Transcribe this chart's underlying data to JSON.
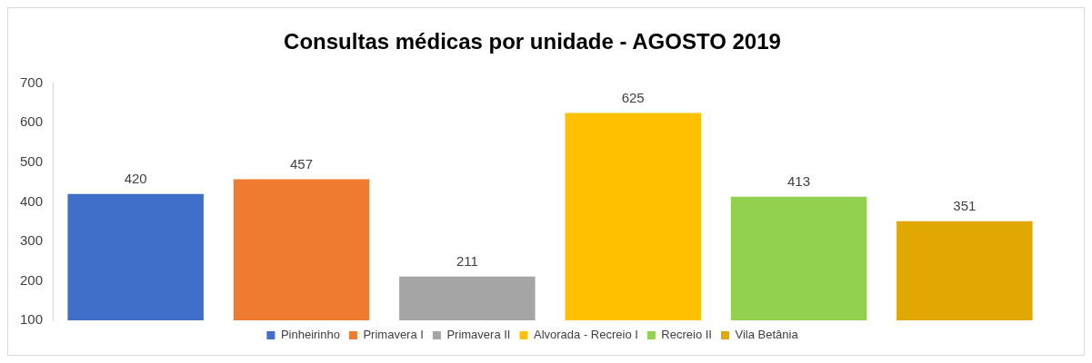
{
  "chart_data": {
    "type": "bar",
    "title": "Consultas médicas por unidade - AGOSTO 2019",
    "categories": [
      null
    ],
    "series": [
      {
        "name": "Pinheirinho",
        "color": "#3f6fc8",
        "values": [
          420
        ]
      },
      {
        "name": "Primavera I",
        "color": "#ee7b30",
        "values": [
          457
        ]
      },
      {
        "name": "Primavera II",
        "color": "#a5a5a5",
        "values": [
          211
        ]
      },
      {
        "name": "Alvorada - Recreio I",
        "color": "#ffc000",
        "values": [
          625
        ]
      },
      {
        "name": "Recreio II",
        "color": "#92d050",
        "values": [
          413
        ]
      },
      {
        "name": "Vila Betânia",
        "color": "#e0a800",
        "values": [
          351
        ]
      }
    ],
    "ylim": [
      100,
      700
    ],
    "yticks": [
      100,
      200,
      300,
      400,
      500,
      600,
      700
    ],
    "data_labels": true,
    "legend": "bottom",
    "grid": false
  }
}
